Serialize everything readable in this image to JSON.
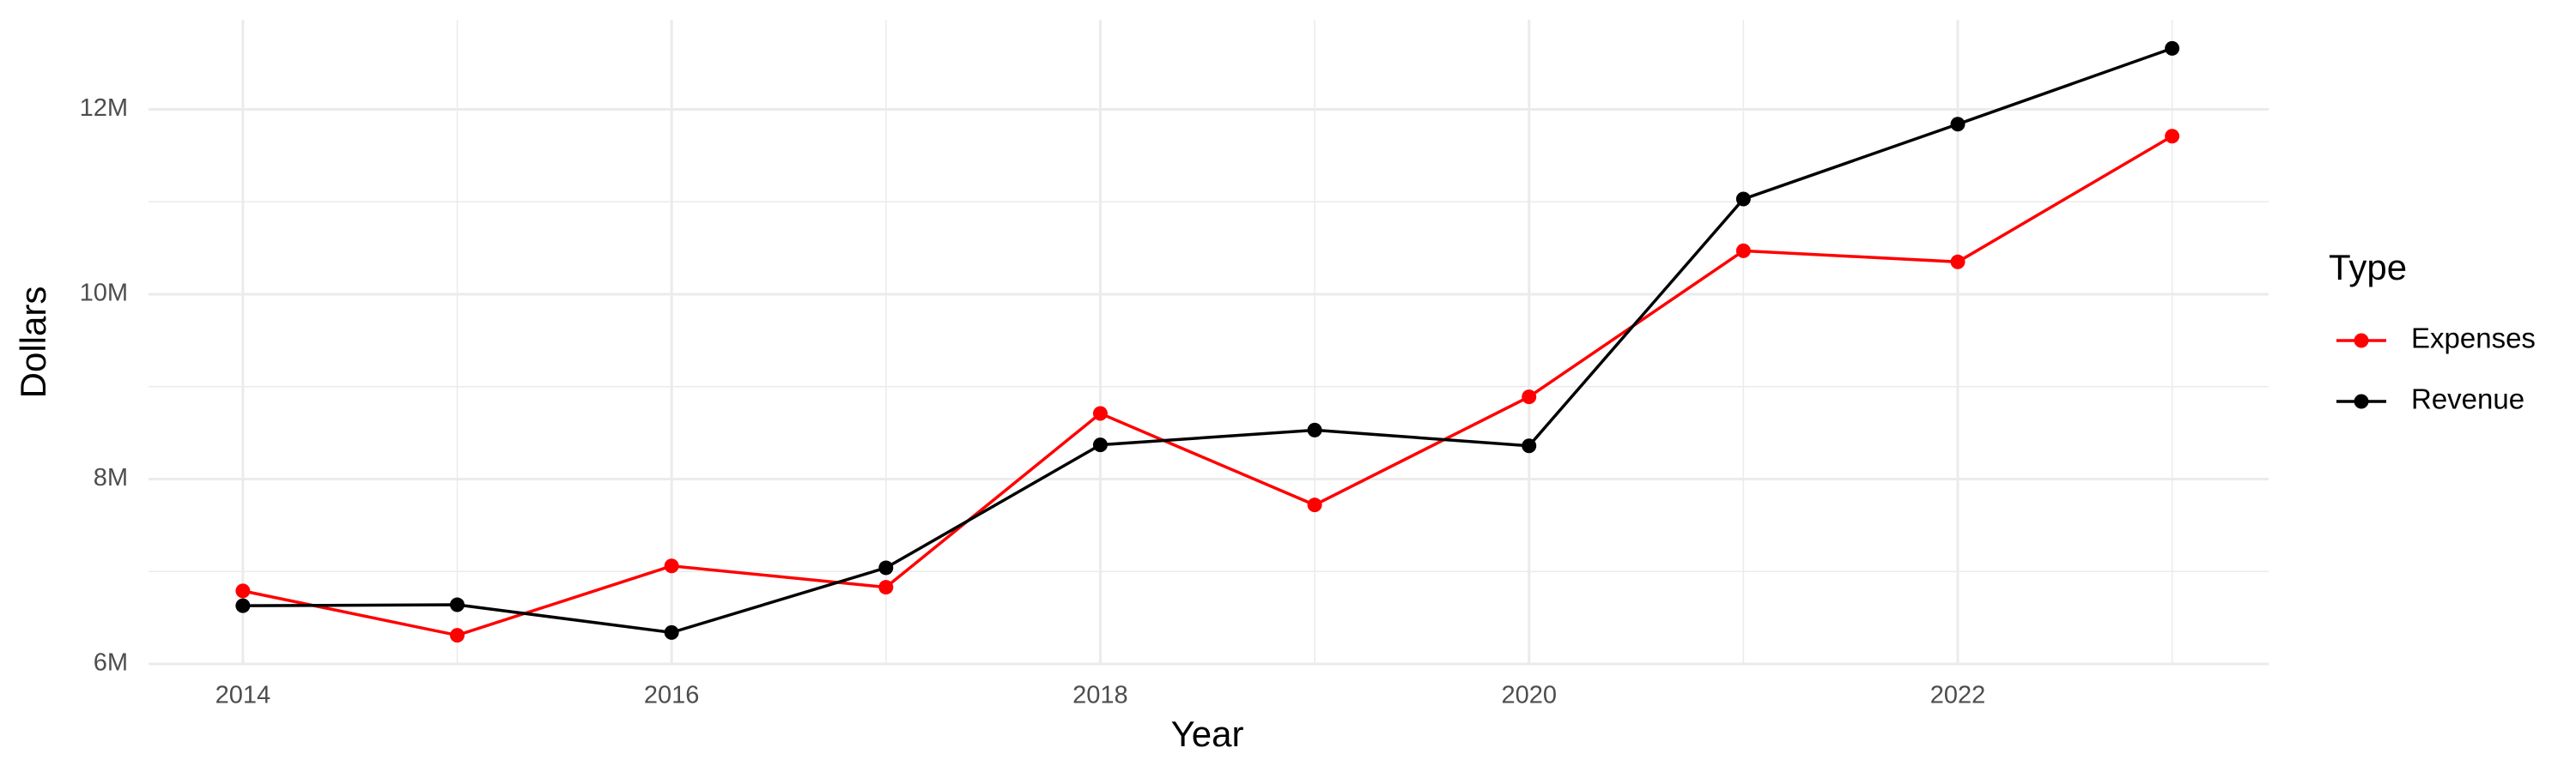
{
  "chart_data": {
    "type": "line",
    "x_label": "Year",
    "y_label": "Dollars",
    "x": [
      2014,
      2015,
      2016,
      2017,
      2018,
      2019,
      2020,
      2021,
      2022,
      2023
    ],
    "series": [
      {
        "name": "Expenses",
        "color": "#ff0000",
        "values": [
          6790000,
          6310000,
          7060000,
          6830000,
          8710000,
          7720000,
          8890000,
          10470000,
          10350000,
          11710000
        ]
      },
      {
        "name": "Revenue",
        "color": "#000000",
        "values": [
          6630000,
          6640000,
          6340000,
          7040000,
          8370000,
          8530000,
          8360000,
          11030000,
          11840000,
          12660000
        ]
      }
    ],
    "xlim": [
      2013.56,
      2023.45
    ],
    "ylim": [
      6000000,
      12970000
    ],
    "xticks": [
      2014,
      2016,
      2018,
      2020,
      2022
    ],
    "yticks": [
      {
        "value": 6000000,
        "label": "6M"
      },
      {
        "value": 8000000,
        "label": "8M"
      },
      {
        "value": 10000000,
        "label": "10M"
      },
      {
        "value": 12000000,
        "label": "12M"
      }
    ],
    "x_minor_ticks": [
      2015,
      2017,
      2019,
      2021,
      2023
    ],
    "y_minor_ticks": [
      7000000,
      9000000,
      11000000
    ],
    "grid": true,
    "legend_title": "Type",
    "legend_position": "right"
  }
}
